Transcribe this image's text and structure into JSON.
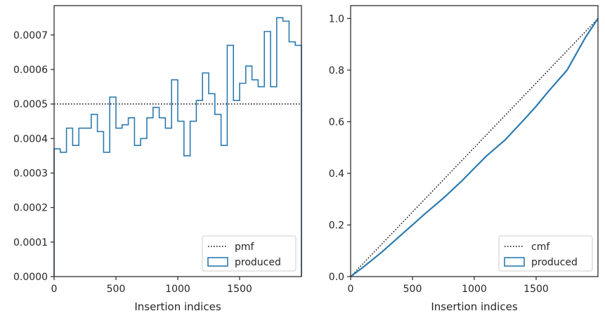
{
  "chart_data": [
    {
      "type": "step-histogram",
      "xlabel": "Insertion indices",
      "ylabel": "",
      "xlim": [
        0,
        2000
      ],
      "ylim": [
        0,
        0.000785
      ],
      "xticks": [
        0,
        500,
        1000,
        1500
      ],
      "xtick_labels": [
        "0",
        "500",
        "1000",
        "1500"
      ],
      "yticks": [
        0,
        0.0001,
        0.0002,
        0.0003,
        0.0004,
        0.0005,
        0.0006,
        0.0007
      ],
      "ytick_labels": [
        "0.0000",
        "0.0001",
        "0.0002",
        "0.0003",
        "0.0004",
        "0.0005",
        "0.0006",
        "0.0007"
      ],
      "bin_width": 50,
      "grid": false,
      "legend_position": "lower-right",
      "series": [
        {
          "name": "pmf",
          "style": "dotted",
          "color": "#000000",
          "value": 0.0005
        },
        {
          "name": "produced",
          "style": "step",
          "color": "#2b7bb0",
          "values": [
            0.00037,
            0.00036,
            0.00043,
            0.00038,
            0.00043,
            0.00043,
            0.00047,
            0.00042,
            0.00036,
            0.00052,
            0.00043,
            0.00044,
            0.00046,
            0.00038,
            0.0004,
            0.00046,
            0.00049,
            0.00046,
            0.00043,
            0.00057,
            0.00045,
            0.00035,
            0.00045,
            0.00051,
            0.00059,
            0.00053,
            0.00047,
            0.00038,
            0.00067,
            0.00051,
            0.00056,
            0.00061,
            0.00057,
            0.00055,
            0.00071,
            0.00055,
            0.00075,
            0.00074,
            0.00068,
            0.00067
          ]
        }
      ]
    },
    {
      "type": "step-cumulative",
      "xlabel": "Insertion indices",
      "ylabel": "",
      "xlim": [
        0,
        2000
      ],
      "ylim": [
        0,
        1.05
      ],
      "xticks": [
        0,
        500,
        1000,
        1500
      ],
      "xtick_labels": [
        "0",
        "500",
        "1000",
        "1500"
      ],
      "yticks": [
        0,
        0.2,
        0.4,
        0.6,
        0.8,
        1.0
      ],
      "ytick_labels": [
        "0.0",
        "0.2",
        "0.4",
        "0.6",
        "0.8",
        "1.0"
      ],
      "grid": false,
      "legend_position": "lower-right",
      "series": [
        {
          "name": "cmf",
          "style": "dotted",
          "color": "#000000",
          "points": [
            [
              0,
              0
            ],
            [
              2000,
              1
            ]
          ]
        },
        {
          "name": "produced",
          "style": "step",
          "color": "#2b7bb0",
          "points": [
            [
              0,
              0
            ],
            [
              100,
              0.036
            ],
            [
              250,
              0.094
            ],
            [
              400,
              0.158
            ],
            [
              500,
              0.2
            ],
            [
              600,
              0.243
            ],
            [
              750,
              0.304
            ],
            [
              900,
              0.371
            ],
            [
              1000,
              0.42
            ],
            [
              1100,
              0.468
            ],
            [
              1250,
              0.53
            ],
            [
              1400,
              0.607
            ],
            [
              1500,
              0.66
            ],
            [
              1600,
              0.718
            ],
            [
              1750,
              0.8
            ],
            [
              1900,
              0.928
            ],
            [
              2000,
              1.0
            ]
          ]
        }
      ]
    }
  ]
}
